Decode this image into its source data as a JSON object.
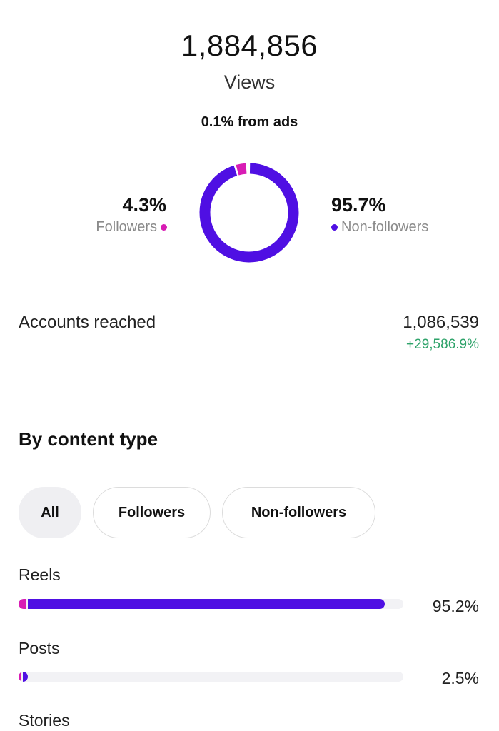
{
  "views": {
    "count": "1,884,856",
    "label": "Views",
    "ads_note": "0.1% from ads"
  },
  "audience": {
    "followers": {
      "percent": "4.3%",
      "value": 4.3,
      "label": "Followers",
      "color": "#d81cb4"
    },
    "non_followers": {
      "percent": "95.7%",
      "value": 95.7,
      "label": "Non-followers",
      "color": "#4f0fe3"
    }
  },
  "reach": {
    "label": "Accounts reached",
    "value": "1,086,539",
    "change": "+29,586.9%",
    "change_color": "#2ea36a"
  },
  "content_type": {
    "title": "By content type",
    "filters": [
      {
        "label": "All",
        "active": true
      },
      {
        "label": "Followers",
        "active": false
      },
      {
        "label": "Non-followers",
        "active": false
      }
    ],
    "rows": [
      {
        "label": "Reels",
        "percent": "95.2%",
        "value": 95.2
      },
      {
        "label": "Posts",
        "percent": "2.5%",
        "value": 2.5
      },
      {
        "label": "Stories"
      }
    ]
  }
}
